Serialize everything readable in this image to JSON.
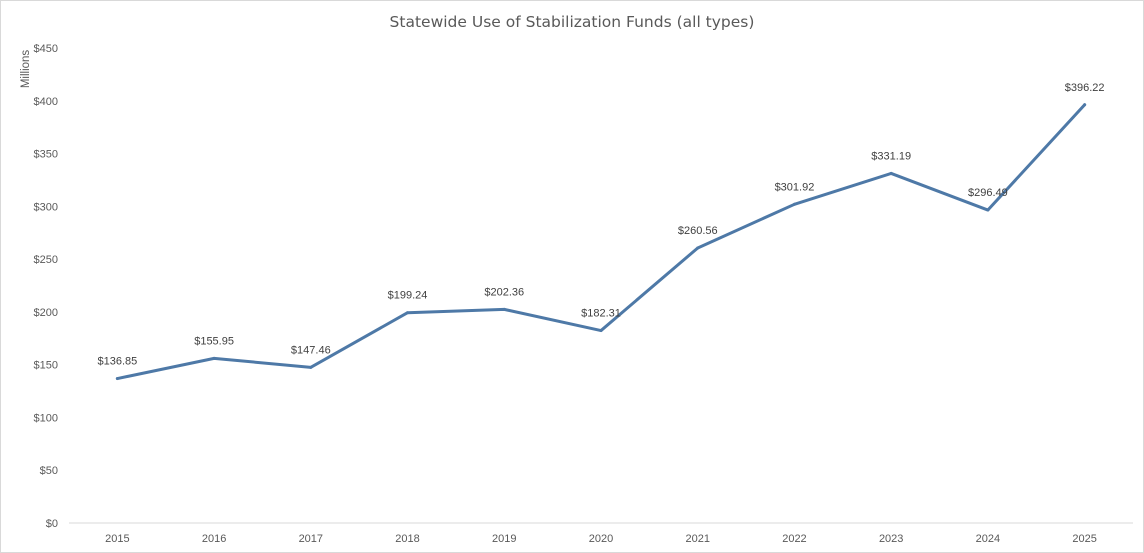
{
  "chart_data": {
    "type": "line",
    "title": "Statewide Use of Stabilization Funds (all types)",
    "ylabel": "Millions",
    "xlabel": "",
    "categories": [
      "2015",
      "2016",
      "2017",
      "2018",
      "2019",
      "2020",
      "2021",
      "2022",
      "2023",
      "2024",
      "2025"
    ],
    "series": [
      {
        "values": [
          136.85,
          155.95,
          147.46,
          199.24,
          202.36,
          182.31,
          260.56,
          301.92,
          331.19,
          296.49,
          396.22
        ],
        "labels": [
          "$136.85",
          "$155.95",
          "$147.46",
          "$199.24",
          "$202.36",
          "$182.31",
          "$260.56",
          "$301.92",
          "$331.19",
          "$296.49",
          "$396.22"
        ],
        "color": "#4E79A7"
      }
    ],
    "ylim": [
      0,
      450
    ],
    "yticks": [
      0,
      50,
      100,
      150,
      200,
      250,
      300,
      350,
      400,
      450
    ],
    "ytick_labels": [
      "$0",
      "$50",
      "$100",
      "$150",
      "$200",
      "$250",
      "$300",
      "$350",
      "$400",
      "$450"
    ],
    "grid": false,
    "legend": "none"
  }
}
